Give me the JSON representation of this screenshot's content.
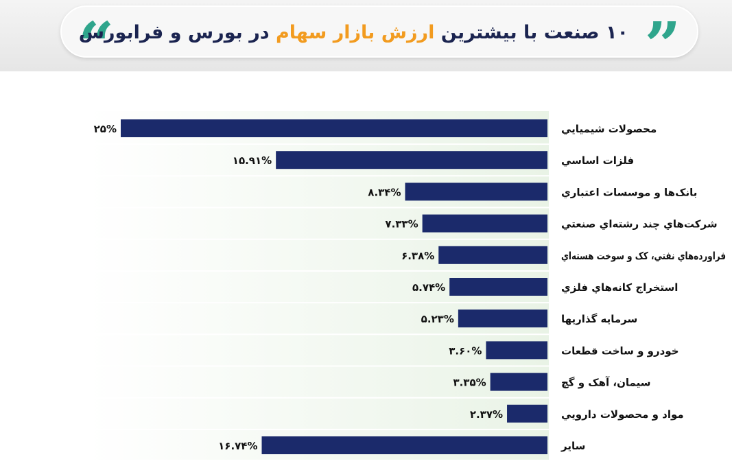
{
  "header": {
    "title_part1": "۱۰ صنعت با بیشترین ",
    "title_highlight": "ارزش بازار سهام",
    "title_part2": " در بورس و فرابورس",
    "quote_open": "“",
    "quote_close": "”"
  },
  "colors": {
    "bar": "#1b2a6b",
    "accent": "#f29b1f",
    "quote": "#2fa58c",
    "title": "#1b2450"
  },
  "chart_data": {
    "type": "bar",
    "orientation": "horizontal",
    "title": "۱۰ صنعت با بیشترین ارزش بازار سهام در بورس و فرابورس",
    "xlabel": "",
    "ylabel": "",
    "categories": [
      "محصولات شيميايي",
      "فلزات اساسي",
      "بانک‌ها و موسسات اعتباري",
      "شرکت‌هاي چند رشته‌اي صنعتي",
      "فراورده‌هاي نفتي، کک و سوخت هسته‌اي",
      "استخراج کانه‌هاي فلزي",
      "سرمايه گذاريها",
      "خودرو و ساخت قطعات",
      "سيمان، آهک و گچ",
      "مواد و محصولات دارويي",
      "ساير"
    ],
    "values": [
      25,
      15.91,
      8.34,
      7.33,
      6.38,
      5.74,
      5.23,
      3.6,
      3.35,
      2.37,
      16.74
    ],
    "value_labels": [
      "۲۵%",
      "۱۵.۹۱%",
      "۸.۳۴%",
      "۷.۳۳%",
      "۶.۳۸%",
      "۵.۷۴%",
      "۵.۲۳%",
      "۳.۶۰%",
      "۳.۳۵%",
      "۲.۳۷%",
      "۱۶.۷۴%"
    ],
    "xlim": [
      0,
      25
    ],
    "grid": false,
    "legend": "none"
  }
}
